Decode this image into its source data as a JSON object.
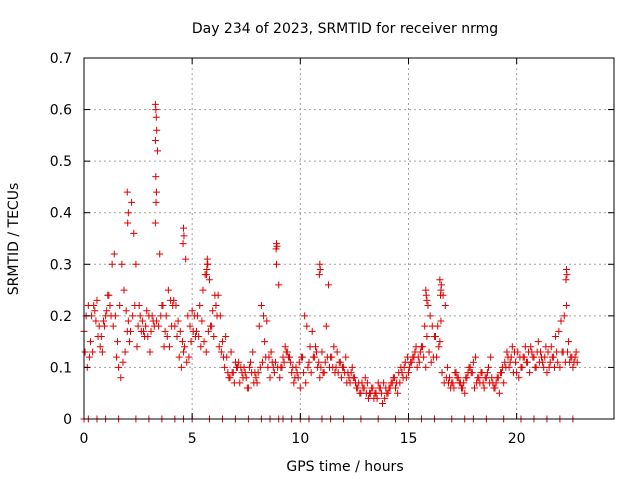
{
  "chart_data": {
    "type": "scatter",
    "title": "Day 234 of 2023, SRMTID for receiver nrmg",
    "xlabel": "GPS time / hours",
    "ylabel": "SRMTID / TECUs",
    "xlim": [
      0,
      24.5
    ],
    "ylim": [
      0,
      0.7
    ],
    "xticks": [
      0,
      5,
      10,
      15,
      20
    ],
    "yticks": [
      0,
      0.1,
      0.2,
      0.3,
      0.4,
      0.5,
      0.6,
      0.7
    ],
    "xtick_labels": [
      "0",
      "5",
      "10",
      "15",
      "20"
    ],
    "ytick_labels": [
      "0",
      "0.1",
      "0.2",
      "0.3",
      "0.4",
      "0.5",
      "0.6",
      "0.7"
    ],
    "grid": true,
    "marker": "+",
    "color": "#e00000",
    "series": [
      {
        "name": "SRMTID",
        "x": [
          0.0,
          0.1,
          0.2,
          0.3,
          0.4,
          0.5,
          0.6,
          0.7,
          0.8,
          0.9,
          1.0,
          1.1,
          1.2,
          1.3,
          1.4,
          1.5,
          1.6,
          1.7,
          1.8,
          1.9,
          2.0,
          2.1,
          2.2,
          2.3,
          2.4,
          2.5,
          2.6,
          2.7,
          2.8,
          2.9,
          3.0,
          3.1,
          3.2,
          3.3,
          3.4,
          3.5,
          3.6,
          3.7,
          3.8,
          3.9,
          4.0,
          4.1,
          4.2,
          4.3,
          4.4,
          4.5,
          4.6,
          4.7,
          4.8,
          4.9,
          5.0,
          5.1,
          5.2,
          5.3,
          5.4,
          5.5,
          5.6,
          5.7,
          5.8,
          5.9,
          6.0,
          6.1,
          6.2,
          6.3,
          6.4,
          6.5,
          6.6,
          6.7,
          6.8,
          6.9,
          7.0,
          7.1,
          7.2,
          7.3,
          7.4,
          7.5,
          7.6,
          7.7,
          7.8,
          7.9,
          8.0,
          8.1,
          8.2,
          8.3,
          8.4,
          8.5,
          8.6,
          8.7,
          8.8,
          8.9,
          9.0,
          9.1,
          9.2,
          9.3,
          9.4,
          9.5,
          9.6,
          9.7,
          9.8,
          9.9,
          10.0,
          10.1,
          10.2,
          10.3,
          10.4,
          10.5,
          10.6,
          10.7,
          10.8,
          10.9,
          11.0,
          11.1,
          11.2,
          11.3,
          11.4,
          11.5,
          11.6,
          11.7,
          11.8,
          11.9,
          12.0,
          12.1,
          12.2,
          12.3,
          12.4,
          12.5,
          12.6,
          12.7,
          12.8,
          12.9,
          13.0,
          13.1,
          13.2,
          13.3,
          13.4,
          13.5,
          13.6,
          13.7,
          13.8,
          13.9,
          14.0,
          14.1,
          14.2,
          14.3,
          14.4,
          14.5,
          14.6,
          14.7,
          14.8,
          14.9,
          15.0,
          15.1,
          15.2,
          15.3,
          15.4,
          15.5,
          15.6,
          15.7,
          15.8,
          15.9,
          16.0,
          16.1,
          16.2,
          16.3,
          16.4,
          16.5,
          16.6,
          16.7,
          16.8,
          16.9,
          17.0,
          17.1,
          17.2,
          17.3,
          17.4,
          17.5,
          17.6,
          17.7,
          17.8,
          17.9,
          18.0,
          18.1,
          18.2,
          18.3,
          18.4,
          18.5,
          18.6,
          18.7,
          18.8,
          18.9,
          19.0,
          19.1,
          19.2,
          19.3,
          19.4,
          19.5,
          19.6,
          19.7,
          19.8,
          19.9,
          20.0,
          20.1,
          20.2,
          20.3,
          20.4,
          20.5,
          20.6,
          20.7,
          20.8,
          20.9,
          21.0,
          21.1,
          21.2,
          21.3,
          21.4,
          21.5,
          21.6,
          21.7,
          21.8,
          21.9,
          22.0,
          22.1,
          22.2,
          22.3,
          22.4,
          22.5,
          22.6,
          22.7,
          22.8,
          0.05,
          0.15,
          0.25,
          0.35,
          0.45,
          0.55,
          0.65,
          0.75,
          0.85,
          0.95,
          1.05,
          1.15,
          1.25,
          1.35,
          1.45,
          1.55,
          1.65,
          1.75,
          1.85,
          1.95,
          2.05,
          2.15,
          2.25,
          2.35,
          2.45,
          2.55,
          2.65,
          2.75,
          2.85,
          2.95,
          3.05,
          3.15,
          3.25,
          3.35,
          3.45,
          3.55,
          3.65,
          3.75,
          3.85,
          3.95,
          4.05,
          4.15,
          4.25,
          4.35,
          4.45,
          4.55,
          4.65,
          4.75,
          4.85,
          4.95,
          5.05,
          5.15,
          5.25,
          5.35,
          5.45,
          5.55,
          5.65,
          5.75,
          5.85,
          5.95,
          6.05,
          6.15,
          6.25,
          6.35,
          6.45,
          6.55,
          6.65,
          6.75,
          6.85,
          6.95,
          7.05,
          7.15,
          7.25,
          7.35,
          7.45,
          7.55,
          7.65,
          7.75,
          7.85,
          7.95,
          8.05,
          8.15,
          8.25,
          8.35,
          8.45,
          8.55,
          8.65,
          8.75,
          8.85,
          8.95,
          9.05,
          9.15,
          9.25,
          9.35,
          9.45,
          9.55,
          9.65,
          9.75,
          9.85,
          9.95,
          10.05,
          10.15,
          10.25,
          10.35,
          10.45,
          10.55,
          10.65,
          10.75,
          10.85,
          10.95,
          11.05,
          11.15,
          11.25,
          11.35,
          11.45,
          11.55,
          11.65,
          11.75,
          11.85,
          11.95,
          12.05,
          12.15,
          12.25,
          12.35,
          12.45,
          12.55,
          12.65,
          12.75,
          12.85,
          12.95,
          13.05,
          13.15,
          13.25,
          13.35,
          13.45,
          13.55,
          13.65,
          13.75,
          13.85,
          13.95,
          14.05,
          14.15,
          14.25,
          14.35,
          14.45,
          14.55,
          14.65,
          14.75,
          14.85,
          14.95,
          15.05,
          15.15,
          15.25,
          15.35,
          15.45,
          15.55,
          15.65,
          15.75,
          15.85,
          15.95,
          16.05,
          16.15,
          16.25,
          16.35,
          16.45,
          16.55,
          16.65,
          16.75,
          16.85,
          16.95,
          17.05,
          17.15,
          17.25,
          17.35,
          17.45,
          17.55,
          17.65,
          17.75,
          17.85,
          17.95,
          18.05,
          18.15,
          18.25,
          18.35,
          18.45,
          18.55,
          18.65,
          18.75,
          18.85,
          18.95,
          19.05,
          19.15,
          19.25,
          19.35,
          19.45,
          19.55,
          19.65,
          19.75,
          19.85,
          19.95,
          20.05,
          20.15,
          20.25,
          20.35,
          20.45,
          20.55,
          20.65,
          20.75,
          20.85,
          20.95,
          21.05,
          21.15,
          21.25,
          21.35,
          21.45,
          21.55,
          21.65,
          21.75,
          21.85,
          21.95,
          22.05,
          22.15,
          22.25,
          22.35,
          22.45,
          22.55,
          22.65,
          22.75,
          3.3,
          3.32,
          3.34,
          3.36,
          3.3,
          3.32,
          3.35,
          3.33,
          2.0,
          2.05,
          2.02,
          8.9,
          8.92,
          8.88,
          4.6,
          4.62,
          4.58,
          5.7,
          5.72,
          5.68,
          5.66,
          10.9,
          10.92,
          10.88,
          22.3,
          22.32,
          22.28,
          16.5,
          16.52,
          16.48,
          16.45,
          15.8,
          15.82,
          15.85
        ],
        "y": [
          0.17,
          0.2,
          0.22,
          0.15,
          0.13,
          0.21,
          0.23,
          0.18,
          0.16,
          0.19,
          0.2,
          0.24,
          0.22,
          0.3,
          0.32,
          0.12,
          0.1,
          0.08,
          0.11,
          0.13,
          0.17,
          0.15,
          0.42,
          0.36,
          0.3,
          0.18,
          0.2,
          0.19,
          0.16,
          0.21,
          0.2,
          0.17,
          0.19,
          0.38,
          0.52,
          0.32,
          0.22,
          0.14,
          0.2,
          0.25,
          0.23,
          0.22,
          0.18,
          0.16,
          0.12,
          0.1,
          0.13,
          0.31,
          0.2,
          0.18,
          0.21,
          0.2,
          0.17,
          0.16,
          0.14,
          0.25,
          0.28,
          0.3,
          0.27,
          0.18,
          0.16,
          0.22,
          0.24,
          0.2,
          0.15,
          0.1,
          0.12,
          0.08,
          0.13,
          0.09,
          0.11,
          0.1,
          0.07,
          0.09,
          0.1,
          0.08,
          0.06,
          0.11,
          0.13,
          0.09,
          0.07,
          0.18,
          0.22,
          0.2,
          0.12,
          0.1,
          0.08,
          0.11,
          0.09,
          0.3,
          0.26,
          0.1,
          0.12,
          0.14,
          0.13,
          0.12,
          0.09,
          0.07,
          0.1,
          0.08,
          0.06,
          0.12,
          0.2,
          0.18,
          0.11,
          0.09,
          0.12,
          0.14,
          0.1,
          0.08,
          0.13,
          0.09,
          0.18,
          0.26,
          0.12,
          0.1,
          0.09,
          0.13,
          0.11,
          0.08,
          0.1,
          0.12,
          0.09,
          0.07,
          0.1,
          0.08,
          0.06,
          0.07,
          0.05,
          0.06,
          0.08,
          0.07,
          0.05,
          0.06,
          0.04,
          0.05,
          0.07,
          0.06,
          0.03,
          0.04,
          0.05,
          0.06,
          0.07,
          0.08,
          0.06,
          0.05,
          0.07,
          0.09,
          0.1,
          0.08,
          0.09,
          0.11,
          0.12,
          0.13,
          0.1,
          0.11,
          0.14,
          0.12,
          0.1,
          0.22,
          0.2,
          0.18,
          0.16,
          0.12,
          0.14,
          0.19,
          0.24,
          0.22,
          0.1,
          0.08,
          0.07,
          0.06,
          0.09,
          0.08,
          0.07,
          0.06,
          0.05,
          0.08,
          0.1,
          0.09,
          0.11,
          0.12,
          0.08,
          0.07,
          0.09,
          0.06,
          0.08,
          0.1,
          0.12,
          0.07,
          0.06,
          0.08,
          0.05,
          0.09,
          0.07,
          0.1,
          0.12,
          0.11,
          0.14,
          0.13,
          0.09,
          0.08,
          0.1,
          0.12,
          0.14,
          0.11,
          0.09,
          0.13,
          0.12,
          0.1,
          0.15,
          0.13,
          0.11,
          0.12,
          0.09,
          0.1,
          0.14,
          0.12,
          0.16,
          0.11,
          0.1,
          0.13,
          0.2,
          0.22,
          0.15,
          0.12,
          0.1,
          0.12,
          0.11,
          0.13,
          0.1,
          0.12,
          0.2,
          0.22,
          0.19,
          0.16,
          0.14,
          0.13,
          0.18,
          0.21,
          0.24,
          0.2,
          0.18,
          0.2,
          0.15,
          0.22,
          0.3,
          0.25,
          0.21,
          0.19,
          0.17,
          0.2,
          0.22,
          0.14,
          0.22,
          0.17,
          0.17,
          0.18,
          0.16,
          0.13,
          0.2,
          0.18,
          0.19,
          0.18,
          0.2,
          0.22,
          0.17,
          0.16,
          0.14,
          0.18,
          0.23,
          0.22,
          0.19,
          0.17,
          0.15,
          0.14,
          0.11,
          0.12,
          0.15,
          0.17,
          0.16,
          0.2,
          0.22,
          0.19,
          0.15,
          0.13,
          0.17,
          0.18,
          0.21,
          0.24,
          0.2,
          0.14,
          0.13,
          0.12,
          0.16,
          0.09,
          0.08,
          0.09,
          0.07,
          0.1,
          0.11,
          0.1,
          0.08,
          0.09,
          0.06,
          0.1,
          0.09,
          0.07,
          0.08,
          0.09,
          0.1,
          0.11,
          0.15,
          0.19,
          0.12,
          0.13,
          0.1,
          0.11,
          0.1,
          0.08,
          0.1,
          0.11,
          0.13,
          0.12,
          0.11,
          0.1,
          0.08,
          0.09,
          0.11,
          0.12,
          0.09,
          0.07,
          0.1,
          0.14,
          0.17,
          0.12,
          0.13,
          0.11,
          0.1,
          0.09,
          0.11,
          0.12,
          0.1,
          0.12,
          0.14,
          0.1,
          0.09,
          0.11,
          0.1,
          0.09,
          0.07,
          0.08,
          0.09,
          0.08,
          0.07,
          0.06,
          0.05,
          0.07,
          0.06,
          0.05,
          0.04,
          0.05,
          0.06,
          0.05,
          0.04,
          0.06,
          0.05,
          0.07,
          0.06,
          0.05,
          0.06,
          0.07,
          0.08,
          0.07,
          0.09,
          0.1,
          0.08,
          0.11,
          0.12,
          0.1,
          0.11,
          0.12,
          0.14,
          0.12,
          0.13,
          0.14,
          0.18,
          0.16,
          0.13,
          0.11,
          0.12,
          0.16,
          0.18,
          0.15,
          0.09,
          0.07,
          0.08,
          0.07,
          0.06,
          0.07,
          0.09,
          0.08,
          0.07,
          0.06,
          0.07,
          0.08,
          0.09,
          0.1,
          0.09,
          0.06,
          0.07,
          0.08,
          0.09,
          0.07,
          0.08,
          0.09,
          0.07,
          0.08,
          0.06,
          0.07,
          0.08,
          0.09,
          0.1,
          0.11,
          0.13,
          0.1,
          0.12,
          0.09,
          0.11,
          0.13,
          0.12,
          0.1,
          0.12,
          0.11,
          0.13,
          0.14,
          0.12,
          0.1,
          0.13,
          0.11,
          0.12,
          0.1,
          0.14,
          0.13,
          0.11,
          0.12,
          0.1,
          0.13,
          0.17,
          0.19,
          0.13,
          0.11,
          0.13,
          0.11,
          0.12,
          0.11,
          0.13,
          0.61,
          0.6,
          0.585,
          0.56,
          0.54,
          0.47,
          0.44,
          0.42,
          0.44,
          0.4,
          0.38,
          0.34,
          0.335,
          0.33,
          0.37,
          0.355,
          0.34,
          0.31,
          0.3,
          0.29,
          0.28,
          0.3,
          0.29,
          0.28,
          0.29,
          0.28,
          0.27,
          0.25,
          0.26,
          0.24,
          0.27,
          0.25,
          0.24,
          0.23
        ]
      }
    ]
  }
}
